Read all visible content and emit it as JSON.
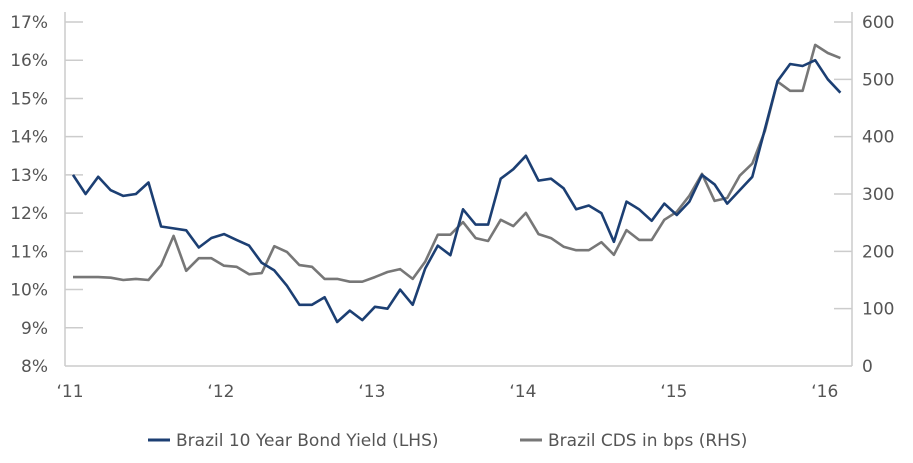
{
  "chart_data": {
    "type": "line",
    "title": "",
    "x_start": "2011-01",
    "x_frequency": "monthly",
    "x_tick_labels": [
      "‘11",
      "‘12",
      "‘13",
      "‘14",
      "‘15",
      "‘16"
    ],
    "y_left": {
      "label": "",
      "range": [
        8,
        17
      ],
      "ticks": [
        "8%",
        "9%",
        "10%",
        "11%",
        "12%",
        "13%",
        "14%",
        "15%",
        "16%",
        "17%"
      ]
    },
    "y_right": {
      "label": "",
      "range": [
        0,
        600
      ],
      "ticks": [
        "0",
        "100",
        "200",
        "300",
        "400",
        "500",
        "600"
      ]
    },
    "grid": false,
    "legend_position": "bottom",
    "series": [
      {
        "name": "Brazil 10 Year Bond Yield (LHS)",
        "axis": "left",
        "color": "#1c3f73",
        "values": [
          13.0,
          12.5,
          12.95,
          12.6,
          12.45,
          12.5,
          12.8,
          11.65,
          11.6,
          11.55,
          11.1,
          11.35,
          11.45,
          11.3,
          11.15,
          10.7,
          10.5,
          10.1,
          9.6,
          9.6,
          9.8,
          9.15,
          9.45,
          9.2,
          9.55,
          9.5,
          10.0,
          9.6,
          10.55,
          11.15,
          10.9,
          12.1,
          11.7,
          11.7,
          12.9,
          13.15,
          13.5,
          12.85,
          12.9,
          12.65,
          12.1,
          12.2,
          12.0,
          11.25,
          12.3,
          12.1,
          11.8,
          12.25,
          11.95,
          12.3,
          13.0,
          12.75,
          12.25,
          12.6,
          12.95,
          14.2,
          15.45,
          15.9,
          15.85,
          16.0,
          15.5,
          15.15
        ]
      },
      {
        "name": "Brazil CDS in bps (RHS)",
        "axis": "right",
        "color": "#777777",
        "values": [
          155,
          155,
          155,
          154,
          150,
          152,
          150,
          176,
          227,
          166,
          188,
          188,
          175,
          173,
          160,
          162,
          209,
          199,
          176,
          173,
          152,
          152,
          147,
          147,
          155,
          164,
          169,
          152,
          182,
          229,
          229,
          251,
          223,
          218,
          255,
          244,
          267,
          230,
          223,
          208,
          202,
          202,
          216,
          194,
          237,
          220,
          220,
          255,
          269,
          297,
          335,
          288,
          293,
          332,
          353,
          410,
          496,
          480,
          480,
          560,
          546,
          537
        ]
      }
    ]
  }
}
